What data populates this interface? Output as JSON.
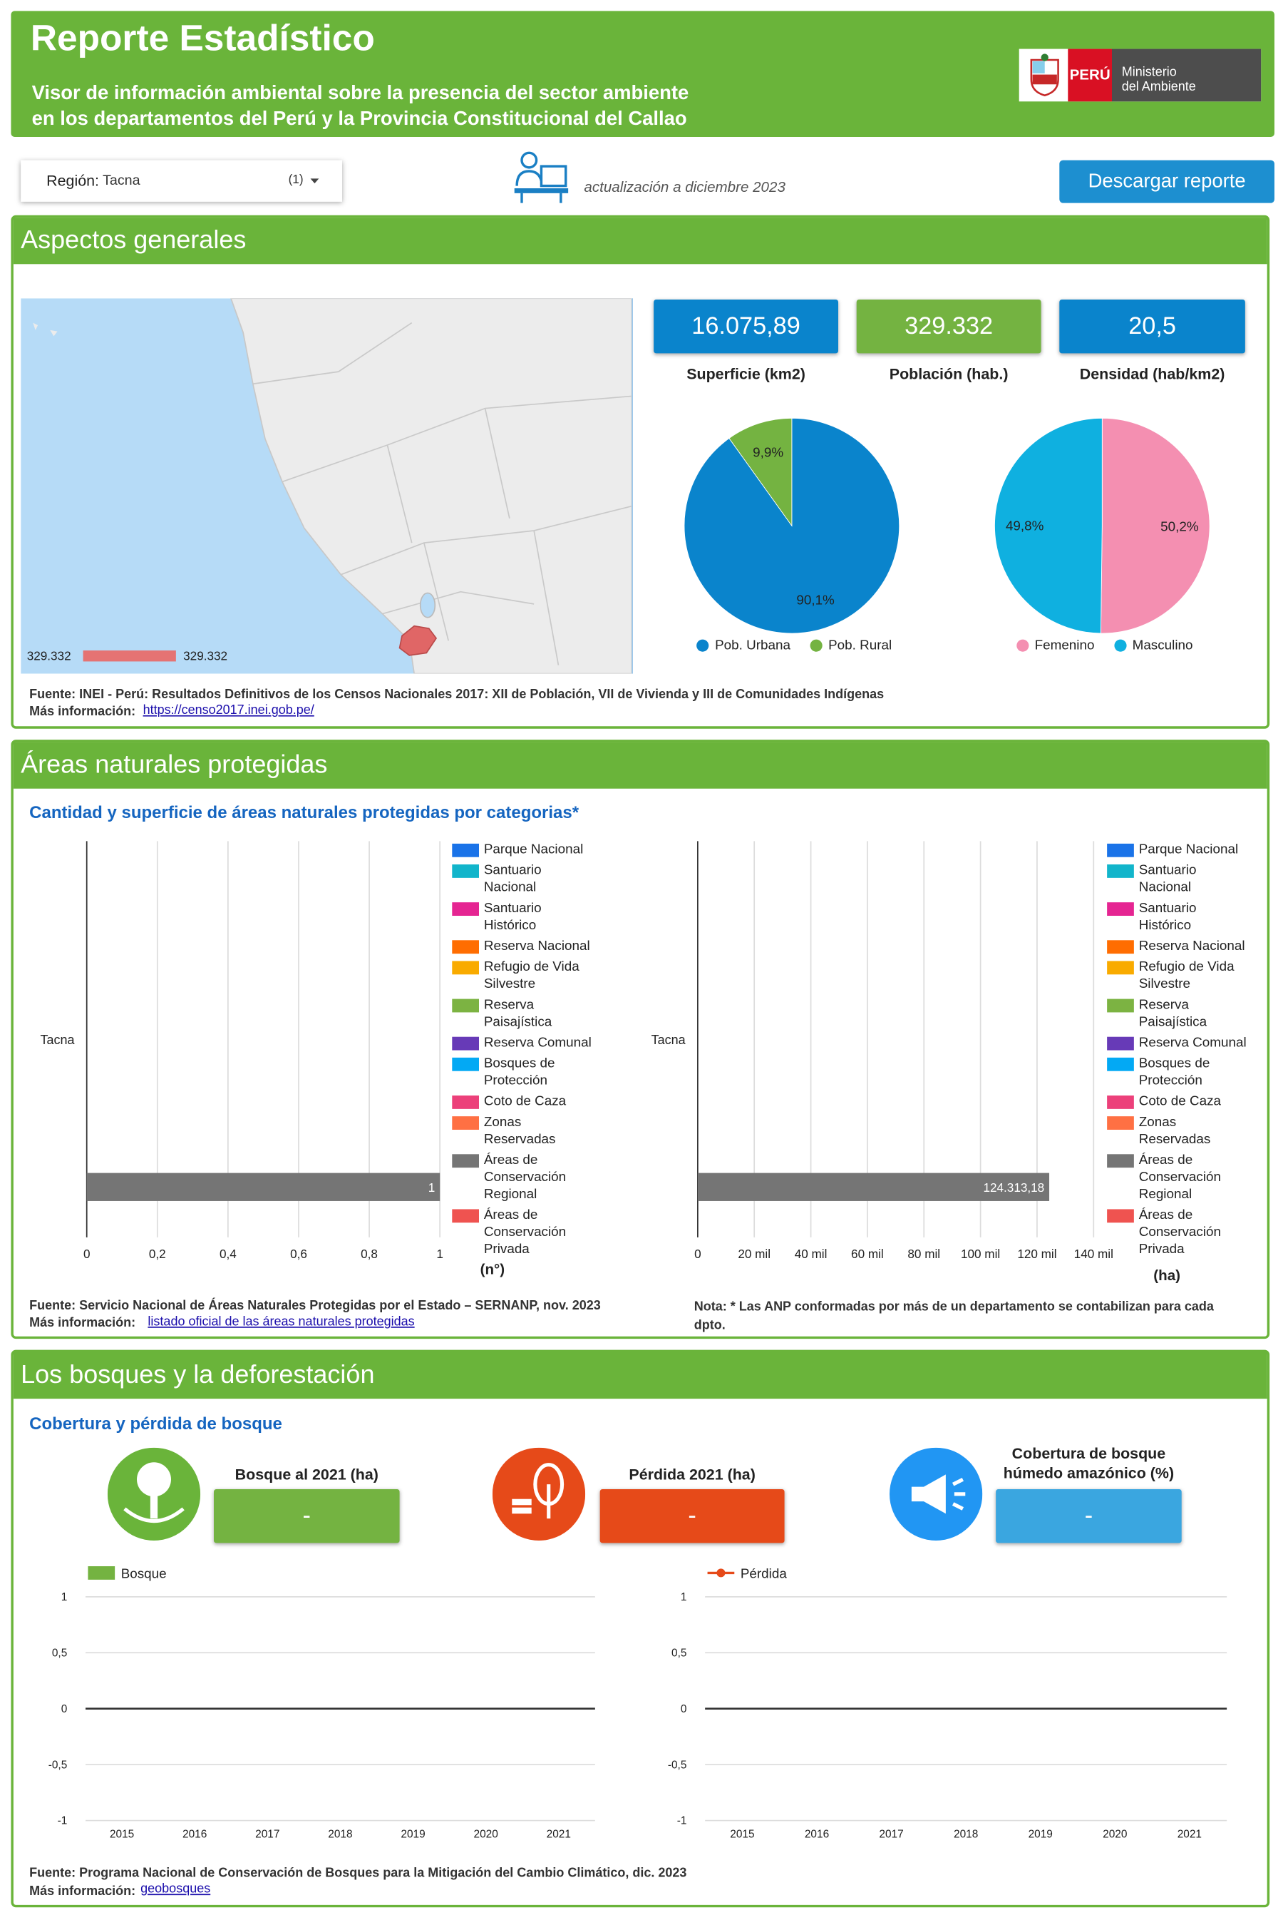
{
  "header": {
    "title": "Reporte Estadístico",
    "subtitle_lines": [
      "Visor de información ambiental sobre la presencia del sector ambiente",
      "en los departamentos del Perú y la Provincia Constitucional del Callao"
    ],
    "logo": {
      "country": "PERÚ",
      "ministry_lines": [
        "Ministerio",
        "del Ambiente"
      ]
    }
  },
  "controls": {
    "region_label": "Región:",
    "region_value": "Tacna",
    "region_count": "(1)",
    "update_note": "actualización a diciembre 2023",
    "download_button": "Descargar reporte"
  },
  "sections": [
    {
      "title": "Aspectos generales",
      "kpis": [
        {
          "value": "16.075,89",
          "label": "Superficie (km2)"
        },
        {
          "value": "329.332",
          "label": "Población (hab.)"
        },
        {
          "value": "20,5",
          "label": "Densidad (hab/km2)"
        }
      ],
      "map": {
        "legend_min": "329.332",
        "legend_max": "329.332"
      },
      "source": "Fuente: INEI - Perú: Resultados Definitivos de los Censos Nacionales 2017: XII de Población, VII de Vivienda y III de Comunidades Indígenas",
      "more_info_label": "Más información:",
      "link": "https://censo2017.inei.gob.pe/"
    },
    {
      "title": "Áreas naturales protegidas",
      "subtitle": "Cantidad y superficie de áreas naturales protegidas por categorias*",
      "source": "Fuente: Servicio Nacional de Áreas Naturales Protegidas por el Estado – SERNANP, nov. 2023",
      "more_info_label": "Más información:",
      "link": "listado oficial de las áreas naturales protegidas",
      "note": "Nota: * Las ANP conformadas por más de un departamento se contabilizan para cada dpto."
    },
    {
      "title": "Los bosques y la deforestación",
      "subtitle": "Cobertura y pérdida de bosque",
      "kpis": [
        {
          "label": "Bosque al 2021 (ha)",
          "value": "-"
        },
        {
          "label": "Pérdida 2021 (ha)",
          "value": "-"
        },
        {
          "label": "Cobertura de bosque húmedo amazónico (%)",
          "value": "-"
        }
      ],
      "source": "Fuente: Programa Nacional de Conservación de Bosques para la Mitigación del Cambio Climático, dic. 2023",
      "more_info_label": "Más información:",
      "link": "geobosques"
    }
  ],
  "chart_data": [
    {
      "type": "pie",
      "categories": [
        "Pob. Urbana",
        "Pob. Rural"
      ],
      "values": [
        90.1,
        9.9
      ],
      "value_labels": [
        "90,1%",
        "9,9%"
      ],
      "colors": [
        "#0a84cc",
        "#74b341"
      ]
    },
    {
      "type": "pie",
      "categories": [
        "Femenino",
        "Masculino"
      ],
      "values": [
        50.2,
        49.8
      ],
      "value_labels": [
        "50,2%",
        "49,8%"
      ],
      "colors": [
        "#f48fb1",
        "#0fb0e0"
      ]
    },
    {
      "type": "bar",
      "orientation": "horizontal",
      "categories": [
        "Tacna"
      ],
      "xlabel": "(n°)",
      "xlim": [
        0,
        1
      ],
      "xticks": [
        0,
        {
          "value": 0.2,
          "label": "0,2"
        },
        {
          "value": 0.4,
          "label": "0,4"
        },
        {
          "value": 0.6,
          "label": "0,6"
        },
        {
          "value": 0.8,
          "label": "0,8"
        },
        1
      ],
      "grid": true,
      "series": [
        {
          "name": "Parque Nacional",
          "color": "#1a73e8",
          "values": [
            null
          ]
        },
        {
          "name": "Santuario Nacional",
          "color": "#12b5cb",
          "values": [
            null
          ]
        },
        {
          "name": "Santuario Histórico",
          "color": "#e52592",
          "values": [
            null
          ]
        },
        {
          "name": "Reserva Nacional",
          "color": "#ff6d01",
          "values": [
            null
          ]
        },
        {
          "name": "Refugio de Vida Silvestre",
          "color": "#f9ab00",
          "values": [
            null
          ]
        },
        {
          "name": "Reserva Paisajística",
          "color": "#7cb342",
          "values": [
            null
          ]
        },
        {
          "name": "Reserva Comunal",
          "color": "#673ab7",
          "values": [
            null
          ]
        },
        {
          "name": "Bosques de Protección",
          "color": "#03a9f4",
          "values": [
            null
          ]
        },
        {
          "name": "Coto de Caza",
          "color": "#ec407a",
          "values": [
            null
          ]
        },
        {
          "name": "Zonas Reservadas",
          "color": "#ff7043",
          "values": [
            null
          ]
        },
        {
          "name": "Áreas de Conservación Regional",
          "color": "#757575",
          "values": [
            1
          ]
        },
        {
          "name": "Áreas de Conservación Privada",
          "color": "#ef5350",
          "values": [
            null
          ]
        }
      ]
    },
    {
      "type": "bar",
      "orientation": "horizontal",
      "categories": [
        "Tacna"
      ],
      "xlabel": "(ha)",
      "xlim": [
        0,
        140000
      ],
      "xticks": [
        0,
        {
          "value": 20000,
          "label": "20 mil"
        },
        {
          "value": 40000,
          "label": "40 mil"
        },
        {
          "value": 60000,
          "label": "60 mil"
        },
        {
          "value": 80000,
          "label": "80 mil"
        },
        {
          "value": 100000,
          "label": "100 mil"
        },
        {
          "value": 120000,
          "label": "120 mil"
        },
        {
          "value": 140000,
          "label": "140 mil"
        }
      ],
      "grid": true,
      "series": [
        {
          "name": "Parque Nacional",
          "color": "#1a73e8",
          "values": [
            null
          ]
        },
        {
          "name": "Santuario Nacional",
          "color": "#12b5cb",
          "values": [
            null
          ]
        },
        {
          "name": "Santuario Histórico",
          "color": "#e52592",
          "values": [
            null
          ]
        },
        {
          "name": "Reserva Nacional",
          "color": "#ff6d01",
          "values": [
            null
          ]
        },
        {
          "name": "Refugio de Vida Silvestre",
          "color": "#f9ab00",
          "values": [
            null
          ]
        },
        {
          "name": "Reserva Paisajística",
          "color": "#7cb342",
          "values": [
            null
          ]
        },
        {
          "name": "Reserva Comunal",
          "color": "#673ab7",
          "values": [
            null
          ]
        },
        {
          "name": "Bosques de Protección",
          "color": "#03a9f4",
          "values": [
            null
          ]
        },
        {
          "name": "Coto de Caza",
          "color": "#ec407a",
          "values": [
            null
          ]
        },
        {
          "name": "Zonas Reservadas",
          "color": "#ff7043",
          "values": [
            null
          ]
        },
        {
          "name": "Áreas de Conservación Regional",
          "color": "#757575",
          "values": [
            124313.18
          ],
          "value_labels": [
            "124.313,18"
          ]
        },
        {
          "name": "Áreas de Conservación Privada",
          "color": "#ef5350",
          "values": [
            null
          ]
        }
      ]
    },
    {
      "type": "bar",
      "categories": [
        "2015",
        "2016",
        "2017",
        "2018",
        "2019",
        "2020",
        "2021"
      ],
      "ylim": [
        -1,
        1
      ],
      "yticks": [
        -1,
        {
          "value": -0.5,
          "label": "-0,5"
        },
        0,
        {
          "value": 0.5,
          "label": "0,5"
        },
        1
      ],
      "grid": true,
      "series": [
        {
          "name": "Bosque",
          "color": "#74b341",
          "values": [
            null,
            null,
            null,
            null,
            null,
            null,
            null
          ]
        }
      ]
    },
    {
      "type": "line",
      "categories": [
        "2015",
        "2016",
        "2017",
        "2018",
        "2019",
        "2020",
        "2021"
      ],
      "ylim": [
        -1,
        1
      ],
      "yticks": [
        -1,
        {
          "value": -0.5,
          "label": "-0,5"
        },
        0,
        {
          "value": 0.5,
          "label": "0,5"
        },
        1
      ],
      "grid": true,
      "series": [
        {
          "name": "Pérdida",
          "color": "#e64a19",
          "values": [
            null,
            null,
            null,
            null,
            null,
            null,
            null
          ]
        }
      ]
    }
  ]
}
